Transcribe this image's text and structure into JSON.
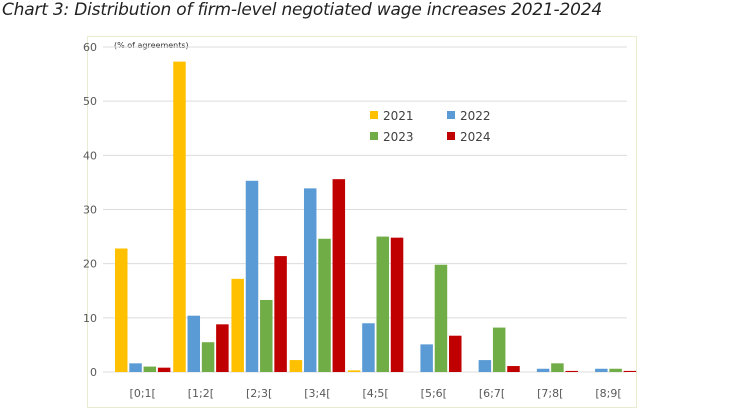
{
  "title": "Chart 3: Distribution of firm-level negotiated wage increases 2021-2024",
  "chart_data": {
    "type": "bar",
    "title": "Chart 3: Distribution of firm-level negotiated wage increases 2021-2024",
    "ylabel": "(% of agreements)",
    "xlabel": "",
    "ylim": [
      0,
      60
    ],
    "yticks": [
      0,
      10,
      20,
      30,
      40,
      50,
      60
    ],
    "grid": true,
    "legend": "top-center",
    "categories": [
      "[0;1[",
      "[1;2[",
      "[2;3[",
      "[3;4[",
      "[4;5[",
      "[5;6[",
      "[6;7[",
      "[7;8[",
      "[8;9["
    ],
    "series": [
      {
        "name": "2021",
        "color": "#FFC000",
        "values": [
          22.8,
          57.3,
          17.2,
          2.2,
          0.3,
          0,
          0,
          0,
          0
        ]
      },
      {
        "name": "2022",
        "color": "#5B9BD5",
        "values": [
          1.6,
          10.4,
          35.3,
          33.9,
          9.0,
          5.1,
          2.2,
          0.6,
          0.6
        ]
      },
      {
        "name": "2023",
        "color": "#70AD47",
        "values": [
          1.0,
          5.5,
          13.3,
          24.6,
          25.0,
          19.8,
          8.2,
          1.6,
          0.6
        ]
      },
      {
        "name": "2024",
        "color": "#C00000",
        "values": [
          0.8,
          8.8,
          21.4,
          35.6,
          24.8,
          6.7,
          1.1,
          0.2,
          0.2
        ]
      }
    ]
  }
}
